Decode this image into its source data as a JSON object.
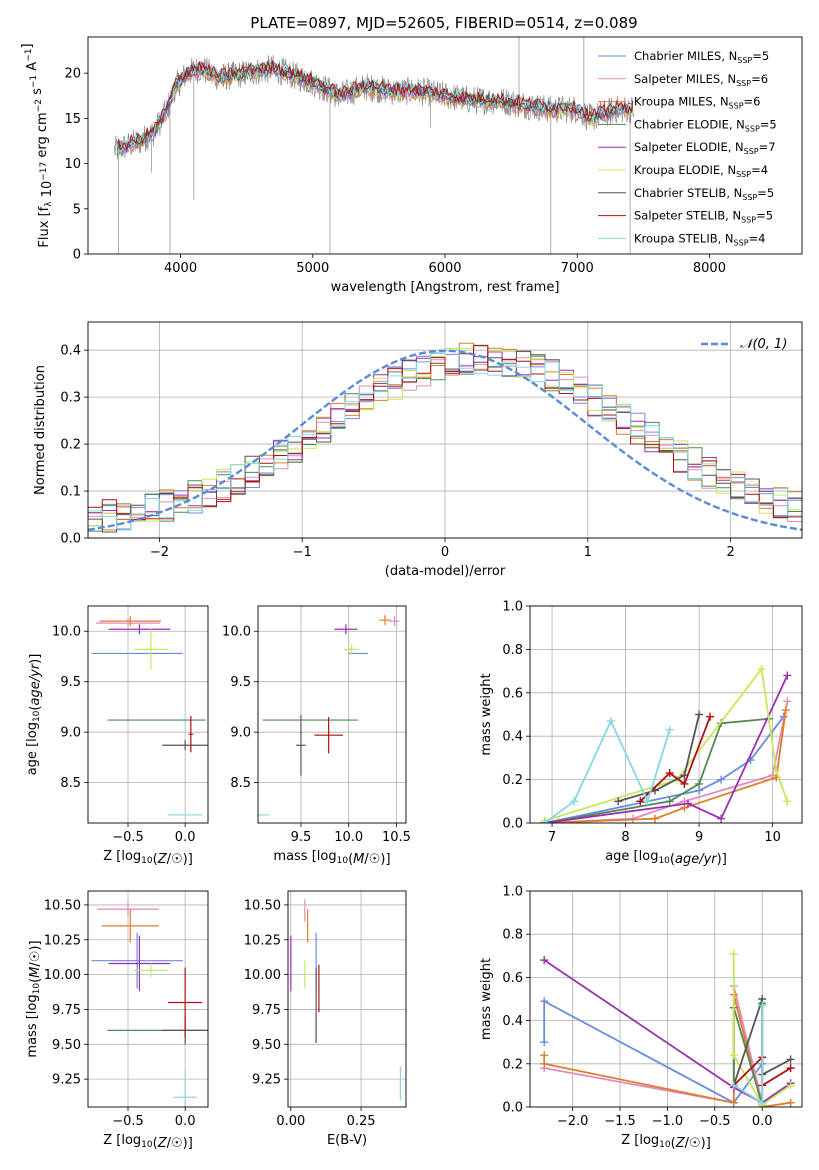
{
  "figure": {
    "title": "PLATE=0897, MJD=52605, FIBERID=0514, z=0.089"
  },
  "colors": {
    "chabrier_miles": "#6a8ce0",
    "salpeter_miles": "#e08ac0",
    "kroupa_miles": "#e07d2b",
    "chabrier_elodie": "#4e8a50",
    "salpeter_elodie": "#9b2fb3",
    "kroupa_elodie": "#c8e65a",
    "chabrier_stelib": "#555555",
    "salpeter_stelib": "#b01010",
    "kroupa_stelib": "#86d8e0",
    "normal": "#5b8bd6",
    "grid": "#b0b0b0"
  },
  "chart_data": [
    {
      "id": "spectrum",
      "type": "line",
      "xlabel": "wavelength [Angstrom, rest frame]",
      "ylabel": "Flux [f_λ 10^-17 erg cm^-2 s^-1 A^-1]",
      "xlim": [
        3300,
        8700
      ],
      "ylim": [
        0,
        24
      ],
      "xticks": [
        4000,
        5000,
        6000,
        7000,
        8000
      ],
      "yticks": [
        0,
        5,
        10,
        15,
        20
      ],
      "grid": false,
      "legend_placement": "top-right",
      "legend": [
        {
          "key": "chabrier_miles",
          "label": "Chabrier MILES, N",
          "sub": "SSP",
          "tail": "=5"
        },
        {
          "key": "salpeter_miles",
          "label": "Salpeter MILES, N",
          "sub": "SSP",
          "tail": "=6"
        },
        {
          "key": "kroupa_miles",
          "label": "Kroupa MILES, N",
          "sub": "SSP",
          "tail": "=6"
        },
        {
          "key": "chabrier_elodie",
          "label": "Chabrier ELODIE, N",
          "sub": "SSP",
          "tail": "=5"
        },
        {
          "key": "salpeter_elodie",
          "label": "Salpeter ELODIE, N",
          "sub": "SSP",
          "tail": "=7"
        },
        {
          "key": "kroupa_elodie",
          "label": "Kroupa ELODIE, N",
          "sub": "SSP",
          "tail": "=4"
        },
        {
          "key": "chabrier_stelib",
          "label": "Chabrier STELIB, N",
          "sub": "SSP",
          "tail": "=5"
        },
        {
          "key": "salpeter_stelib",
          "label": "Salpeter STELIB, N",
          "sub": "SSP",
          "tail": "=5"
        },
        {
          "key": "kroupa_stelib",
          "label": "Kroupa STELIB, N",
          "sub": "SSP",
          "tail": "=4"
        }
      ],
      "continuum": [
        [
          3520,
          11.5
        ],
        [
          3600,
          12.0
        ],
        [
          3700,
          12.5
        ],
        [
          3800,
          13.5
        ],
        [
          3900,
          16.0
        ],
        [
          3960,
          18.5
        ],
        [
          4050,
          20.0
        ],
        [
          4150,
          20.5
        ],
        [
          4300,
          19.5
        ],
        [
          4500,
          20.0
        ],
        [
          4700,
          20.5
        ],
        [
          4900,
          19.5
        ],
        [
          5000,
          19.0
        ],
        [
          5200,
          17.5
        ],
        [
          5400,
          18.5
        ],
        [
          5600,
          18.0
        ],
        [
          5800,
          18.0
        ],
        [
          6000,
          17.5
        ],
        [
          6200,
          17.0
        ],
        [
          6400,
          17.0
        ],
        [
          6600,
          16.5
        ],
        [
          6800,
          16.0
        ],
        [
          7000,
          16.0
        ],
        [
          7100,
          15.0
        ],
        [
          7200,
          15.5
        ],
        [
          7300,
          16.0
        ],
        [
          7420,
          16.0
        ]
      ],
      "data_range": [
        3500,
        7430
      ],
      "spikes": [
        [
          3530,
          0
        ],
        [
          3780,
          9
        ],
        [
          3920,
          0
        ],
        [
          4100,
          6
        ],
        [
          5130,
          0
        ],
        [
          5890,
          14
        ],
        [
          6560,
          24
        ],
        [
          6800,
          0
        ],
        [
          7050,
          24
        ],
        [
          7400,
          0
        ]
      ]
    },
    {
      "id": "residuals",
      "type": "bar",
      "xlabel": "(data-model)/error",
      "ylabel": "Normed distribution",
      "xlim": [
        -2.5,
        2.5
      ],
      "ylim": [
        0,
        0.46
      ],
      "xticks": [
        -2,
        -1,
        0,
        1,
        2
      ],
      "yticks": [
        0.0,
        0.1,
        0.2,
        0.3,
        0.4
      ],
      "grid": true,
      "legend_placement": "top-right",
      "normal_curve_label": "𝒩(0, 1)",
      "bin_width": 0.1
    },
    {
      "id": "age_vs_Z",
      "type": "scatter",
      "xlabel": "Z [log10(Z/Z☉)]",
      "ylabel": "age  [log10(age/yr)]",
      "xlim": [
        -0.85,
        0.2
      ],
      "ylim": [
        8.1,
        10.25
      ],
      "xticks": [
        -0.5,
        0.0
      ],
      "yticks": [
        8.5,
        9.0,
        9.5,
        10.0
      ],
      "grid": true,
      "points": [
        {
          "series": "chabrier_miles",
          "x": -0.42,
          "y": 9.78,
          "xerr": 0.4,
          "yerr": 0.0
        },
        {
          "series": "salpeter_miles",
          "x": -0.5,
          "y": 10.08,
          "xerr": 0.28,
          "yerr": 0.04
        },
        {
          "series": "kroupa_miles",
          "x": -0.48,
          "y": 10.1,
          "xerr": 0.27,
          "yerr": 0.05
        },
        {
          "series": "chabrier_elodie",
          "x": -0.25,
          "y": 9.12,
          "xerr": 0.43,
          "yerr": 0.0
        },
        {
          "series": "salpeter_elodie",
          "x": -0.4,
          "y": 10.02,
          "xerr": 0.27,
          "yerr": 0.05
        },
        {
          "series": "kroupa_elodie",
          "x": -0.3,
          "y": 9.82,
          "xerr": 0.15,
          "yerr": 0.2
        },
        {
          "series": "chabrier_stelib",
          "x": 0.0,
          "y": 8.87,
          "xerr": 0.2,
          "yerr": 0.05
        },
        {
          "series": "salpeter_stelib",
          "x": 0.05,
          "y": 8.98,
          "xerr": 0.02,
          "yerr": 0.18
        },
        {
          "series": "kroupa_stelib",
          "x": 0.0,
          "y": 8.18,
          "xerr": 0.15,
          "yerr": 0.0
        }
      ]
    },
    {
      "id": "age_vs_mass",
      "type": "scatter",
      "xlabel": "mass [log10(M/M☉)]",
      "ylabel": "",
      "xlim": [
        9.05,
        10.6
      ],
      "ylim": [
        8.1,
        10.25
      ],
      "xticks": [
        9.5,
        10.0,
        10.5
      ],
      "yticks": [
        8.5,
        9.0,
        9.5,
        10.0
      ],
      "grid": true,
      "points": [
        {
          "series": "chabrier_miles",
          "x": 10.1,
          "y": 9.78,
          "xerr": 0.1,
          "yerr": 0.0
        },
        {
          "series": "salpeter_miles",
          "x": 10.48,
          "y": 10.1,
          "xerr": 0.05,
          "yerr": 0.05
        },
        {
          "series": "kroupa_miles",
          "x": 10.38,
          "y": 10.11,
          "xerr": 0.06,
          "yerr": 0.05
        },
        {
          "series": "chabrier_elodie",
          "x": 9.6,
          "y": 9.12,
          "xerr": 0.5,
          "yerr": 0.0
        },
        {
          "series": "salpeter_elodie",
          "x": 9.97,
          "y": 10.02,
          "xerr": 0.12,
          "yerr": 0.05
        },
        {
          "series": "kroupa_elodie",
          "x": 10.03,
          "y": 9.82,
          "xerr": 0.08,
          "yerr": 0.05
        },
        {
          "series": "chabrier_stelib",
          "x": 9.5,
          "y": 8.87,
          "xerr": 0.05,
          "yerr": 0.3
        },
        {
          "series": "salpeter_stelib",
          "x": 9.79,
          "y": 8.97,
          "xerr": 0.15,
          "yerr": 0.18
        },
        {
          "series": "kroupa_stelib",
          "x": 9.1,
          "y": 8.18,
          "xerr": 0.07,
          "yerr": 0.0
        }
      ]
    },
    {
      "id": "weight_vs_age",
      "type": "line",
      "xlabel": "age  [log10(age/yr)]",
      "ylabel": "mass weight",
      "xlim": [
        6.7,
        10.4
      ],
      "ylim": [
        0.0,
        1.0
      ],
      "xticks": [
        7,
        8,
        9,
        10
      ],
      "yticks": [
        0.0,
        0.2,
        0.4,
        0.6,
        0.8,
        1.0
      ],
      "grid": true,
      "series": [
        {
          "key": "chabrier_miles",
          "x": [
            6.9,
            9.0,
            9.3,
            9.7,
            10.15
          ],
          "y": [
            0.0,
            0.15,
            0.2,
            0.29,
            0.49
          ]
        },
        {
          "key": "salpeter_miles",
          "x": [
            6.9,
            8.1,
            8.8,
            10.0,
            10.2
          ],
          "y": [
            0.0,
            0.02,
            0.1,
            0.22,
            0.56
          ]
        },
        {
          "key": "kroupa_miles",
          "x": [
            6.9,
            8.4,
            8.8,
            10.05,
            10.18
          ],
          "y": [
            0.0,
            0.02,
            0.07,
            0.21,
            0.52
          ]
        },
        {
          "key": "chabrier_elodie",
          "x": [
            6.9,
            8.6,
            9.0,
            9.3,
            9.95
          ],
          "y": [
            0.0,
            0.1,
            0.18,
            0.46,
            0.48
          ]
        },
        {
          "key": "salpeter_elodie",
          "x": [
            6.9,
            8.85,
            9.3,
            10.2
          ],
          "y": [
            0.0,
            0.09,
            0.02,
            0.68
          ]
        },
        {
          "key": "kroupa_elodie",
          "x": [
            6.9,
            8.7,
            9.85,
            10.05,
            10.2
          ],
          "y": [
            0.01,
            0.2,
            0.71,
            0.24,
            0.1
          ]
        },
        {
          "key": "chabrier_stelib",
          "x": [
            7.9,
            8.4,
            8.8,
            9.0
          ],
          "y": [
            0.1,
            0.15,
            0.22,
            0.5
          ]
        },
        {
          "key": "salpeter_stelib",
          "x": [
            8.2,
            8.6,
            8.8,
            9.15
          ],
          "y": [
            0.1,
            0.23,
            0.18,
            0.49
          ]
        },
        {
          "key": "kroupa_stelib",
          "x": [
            6.9,
            7.3,
            7.8,
            8.3,
            8.6
          ],
          "y": [
            0.0,
            0.1,
            0.47,
            0.1,
            0.43
          ]
        }
      ]
    },
    {
      "id": "mass_vs_Z",
      "type": "scatter",
      "xlabel": "Z [log10(Z/Z☉)]",
      "ylabel": "mass [log10(M/M☉)]",
      "xlim": [
        -0.85,
        0.2
      ],
      "ylim": [
        9.05,
        10.6
      ],
      "xticks": [
        -0.5,
        0.0
      ],
      "yticks": [
        9.25,
        9.5,
        9.75,
        10.0,
        10.25,
        10.5
      ],
      "grid": true,
      "points": [
        {
          "series": "chabrier_miles",
          "x": -0.42,
          "y": 10.1,
          "xerr": 0.4,
          "yerr": 0.2
        },
        {
          "series": "salpeter_miles",
          "x": -0.5,
          "y": 10.47,
          "xerr": 0.27,
          "yerr": 0.05
        },
        {
          "series": "kroupa_miles",
          "x": -0.48,
          "y": 10.35,
          "xerr": 0.25,
          "yerr": 0.12
        },
        {
          "series": "chabrier_elodie",
          "x": -0.25,
          "y": 9.6,
          "xerr": 0.43,
          "yerr": 0.0
        },
        {
          "series": "salpeter_elodie",
          "x": -0.4,
          "y": 10.08,
          "xerr": 0.27,
          "yerr": 0.2
        },
        {
          "series": "kroupa_elodie",
          "x": -0.3,
          "y": 10.03,
          "xerr": 0.15,
          "yerr": 0.05
        },
        {
          "series": "chabrier_stelib",
          "x": 0.0,
          "y": 9.6,
          "xerr": 0.2,
          "yerr": 0.1
        },
        {
          "series": "salpeter_stelib",
          "x": 0.0,
          "y": 9.8,
          "xerr": 0.15,
          "yerr": 0.25
        },
        {
          "series": "kroupa_stelib",
          "x": 0.0,
          "y": 9.12,
          "xerr": 0.1,
          "yerr": 0.2
        }
      ]
    },
    {
      "id": "mass_vs_ebv",
      "type": "scatter",
      "xlabel": "E(B-V)",
      "ylabel": "",
      "xlim": [
        -0.01,
        0.41
      ],
      "ylim": [
        9.05,
        10.6
      ],
      "xticks": [
        0.0,
        0.25
      ],
      "yticks": [
        9.25,
        9.5,
        9.75,
        10.0,
        10.25,
        10.5
      ],
      "grid": true,
      "points": [
        {
          "series": "chabrier_miles",
          "x": 0.09,
          "y": 10.1,
          "xerr": 0.0,
          "yerr": 0.2
        },
        {
          "series": "salpeter_miles",
          "x": 0.05,
          "y": 10.46,
          "xerr": 0.0,
          "yerr": 0.08
        },
        {
          "series": "kroupa_miles",
          "x": 0.06,
          "y": 10.35,
          "xerr": 0.0,
          "yerr": 0.12
        },
        {
          "series": "chabrier_elodie",
          "x": 0.0,
          "y": 9.6,
          "xerr": 0.0,
          "yerr": 0.0
        },
        {
          "series": "salpeter_elodie",
          "x": 0.0,
          "y": 10.08,
          "xerr": 0.0,
          "yerr": 0.2
        },
        {
          "series": "kroupa_elodie",
          "x": 0.05,
          "y": 10.0,
          "xerr": 0.0,
          "yerr": 0.1
        },
        {
          "series": "chabrier_stelib",
          "x": 0.09,
          "y": 9.78,
          "xerr": 0.0,
          "yerr": 0.27
        },
        {
          "series": "salpeter_stelib",
          "x": 0.1,
          "y": 9.9,
          "xerr": 0.0,
          "yerr": 0.17
        },
        {
          "series": "kroupa_stelib",
          "x": 0.39,
          "y": 9.22,
          "xerr": 0.0,
          "yerr": 0.12
        }
      ]
    },
    {
      "id": "weight_vs_Z",
      "type": "line",
      "xlabel": "Z [log10(Z/Z☉)]",
      "ylabel": "mass weight",
      "xlim": [
        -2.45,
        0.42
      ],
      "ylim": [
        0.0,
        1.0
      ],
      "xticks": [
        -2.0,
        -1.5,
        -1.0,
        -0.5,
        0.0
      ],
      "yticks": [
        0.0,
        0.2,
        0.4,
        0.6,
        0.8,
        1.0
      ],
      "grid": true,
      "series": [
        {
          "key": "chabrier_miles",
          "x": [
            -2.3,
            -2.3,
            -0.3,
            0.0,
            0.0
          ],
          "y": [
            0.3,
            0.49,
            0.02,
            0.2,
            0.47
          ]
        },
        {
          "key": "salpeter_miles",
          "x": [
            -2.3,
            -0.3,
            -0.3,
            0.0
          ],
          "y": [
            0.18,
            0.02,
            0.56,
            0.02
          ]
        },
        {
          "key": "kroupa_miles",
          "x": [
            -2.3,
            -2.3,
            -0.3,
            -0.3,
            0.0,
            0.3
          ],
          "y": [
            0.24,
            0.2,
            0.02,
            0.52,
            0.0,
            0.02
          ]
        },
        {
          "key": "chabrier_elodie",
          "x": [
            -0.3,
            -0.3,
            0.0,
            0.0
          ],
          "y": [
            0.1,
            0.46,
            0.01,
            0.48
          ]
        },
        {
          "key": "salpeter_elodie",
          "x": [
            -2.3,
            -0.3,
            0.0,
            0.3
          ],
          "y": [
            0.68,
            0.09,
            0.02,
            0.11
          ]
        },
        {
          "key": "kroupa_elodie",
          "x": [
            -0.3,
            -0.3,
            0.0,
            0.3
          ],
          "y": [
            0.71,
            0.24,
            0.01,
            0.1
          ]
        },
        {
          "key": "chabrier_stelib",
          "x": [
            -0.3,
            0.0,
            0.0,
            0.3
          ],
          "y": [
            0.1,
            0.5,
            0.15,
            0.22
          ]
        },
        {
          "key": "salpeter_stelib",
          "x": [
            -0.3,
            0.0,
            0.0,
            0.3
          ],
          "y": [
            0.1,
            0.23,
            0.1,
            0.18
          ]
        },
        {
          "key": "kroupa_stelib",
          "x": [
            -0.3,
            0.0,
            0.0
          ],
          "y": [
            0.1,
            0.02,
            0.47
          ]
        }
      ]
    }
  ]
}
